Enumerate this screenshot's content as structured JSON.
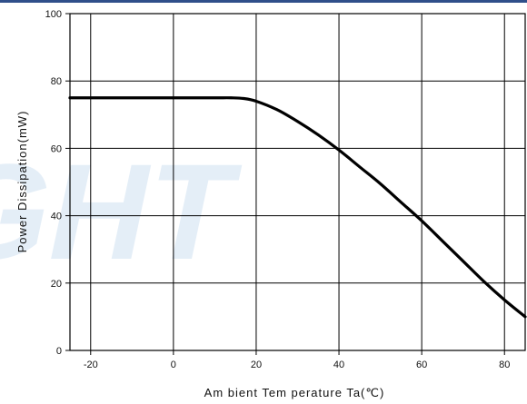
{
  "chart_data": {
    "type": "line",
    "title": "",
    "xlabel": "Am bient Tem perature Ta(℃)",
    "ylabel": "Power Dissipation(mW)",
    "xlim": [
      -25,
      85
    ],
    "ylim": [
      0,
      100
    ],
    "xticks": [
      -20,
      0,
      20,
      40,
      60,
      80
    ],
    "yticks": [
      0,
      20,
      40,
      60,
      80,
      100
    ],
    "grid": true,
    "series": [
      {
        "color": "#000000",
        "x": [
          -25,
          -20,
          -10,
          0,
          10,
          14,
          17,
          20,
          25,
          30,
          35,
          40,
          45,
          50,
          55,
          60,
          65,
          70,
          75,
          80,
          85
        ],
        "y": [
          75,
          75,
          75,
          75,
          75,
          75,
          74.8,
          74,
          71.5,
          68,
          64,
          59.5,
          54.5,
          49.5,
          44,
          38.5,
          32.5,
          26.5,
          20.5,
          15,
          10
        ]
      }
    ]
  },
  "watermark": {
    "text": "GHT",
    "color": "#cfe1f2"
  },
  "topbar_color": "#2f4f8a"
}
